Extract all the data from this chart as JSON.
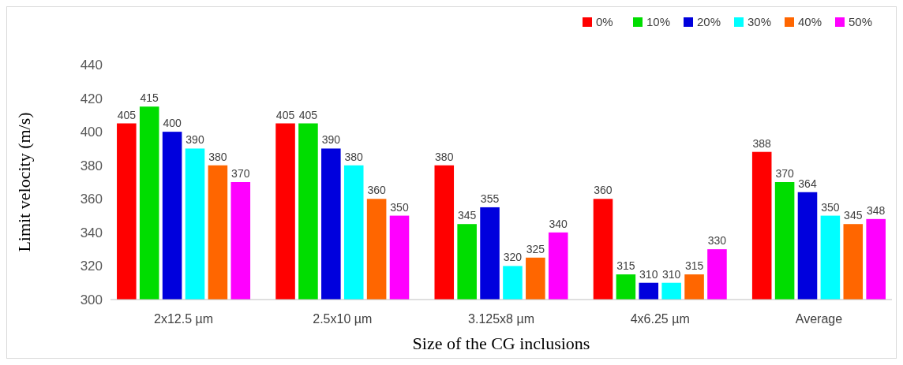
{
  "chart_data": {
    "type": "bar",
    "xlabel": "Size of the CG inclusions",
    "ylabel": "Limit velocity (m/s)",
    "categories": [
      "2x12.5 µm",
      "2.5x10 µm",
      "3.125x8 µm",
      "4x6.25 µm",
      "Average"
    ],
    "series": [
      {
        "name": "0%",
        "color": "#ff0000",
        "values": [
          405,
          405,
          380,
          360,
          388
        ]
      },
      {
        "name": "10%",
        "color": "#00dd00",
        "values": [
          415,
          405,
          345,
          315,
          370
        ]
      },
      {
        "name": "20%",
        "color": "#0000dd",
        "values": [
          400,
          390,
          355,
          310,
          364
        ]
      },
      {
        "name": "30%",
        "color": "#00ffff",
        "values": [
          390,
          380,
          320,
          310,
          350
        ]
      },
      {
        "name": "40%",
        "color": "#ff6600",
        "values": [
          380,
          360,
          325,
          315,
          345
        ]
      },
      {
        "name": "50%",
        "color": "#ff00ff",
        "values": [
          370,
          350,
          340,
          330,
          348
        ]
      }
    ],
    "ylim": [
      300,
      440
    ],
    "yticks": [
      300,
      320,
      340,
      360,
      380,
      400,
      420,
      440
    ],
    "data_labels": true,
    "legend": "top right",
    "grid": false
  }
}
